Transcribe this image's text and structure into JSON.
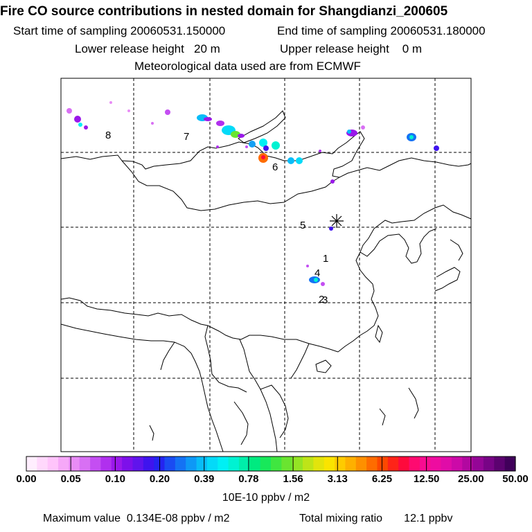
{
  "header": {
    "title": "Fire CO source contributions in nested domain for Shangdianzi_200605",
    "start_label": "Start time of sampling",
    "start_value": "20060531.150000",
    "end_label": "End time of sampling",
    "end_value": "20060531.180000",
    "lower_label": "Lower release height",
    "lower_value": "20 m",
    "upper_label": "Upper release height",
    "upper_value": "0 m",
    "met_text": "Meteorological data used are from ECMWF"
  },
  "map": {
    "receptor_symbol": "asterisk",
    "point_labels": [
      "1",
      "2",
      "3",
      "4",
      "5",
      "6",
      "7",
      "8"
    ]
  },
  "colorbar": {
    "labels": [
      "0.00",
      "0.05",
      "0.10",
      "0.20",
      "0.39",
      "0.78",
      "1.56",
      "3.13",
      "6.25",
      "12.50",
      "25.00",
      "50.00"
    ],
    "units": "10E-10 ppbv / m2",
    "colors": [
      "#ffeefe",
      "#ffd8fc",
      "#ffc4fb",
      "#f6a8f8",
      "#e88cf6",
      "#d870f4",
      "#c44ef2",
      "#b030ee",
      "#9a18ea",
      "#7d10ea",
      "#6014ec",
      "#3f14ee",
      "#2424f0",
      "#1a4cf2",
      "#1472f4",
      "#0e98f6",
      "#08bcf8",
      "#04daf8",
      "#00f0f4",
      "#00f2d2",
      "#00eeaa",
      "#00ea80",
      "#18e85a",
      "#40e640",
      "#6ae430",
      "#94e424",
      "#bee418",
      "#e2e40c",
      "#fae400",
      "#fecb00",
      "#feb000",
      "#fe9000",
      "#fe6c00",
      "#fe4800",
      "#fe2418",
      "#fe0a3c",
      "#fe0a70",
      "#f80c90",
      "#ee0ca0",
      "#e00ca8",
      "#cc0aa8",
      "#b208a0",
      "#940696",
      "#780486",
      "#5c0270",
      "#40005a"
    ]
  },
  "footer": {
    "max_label": "Maximum value",
    "max_value": "0.134E-08 ppbv / m2",
    "total_label": "Total mixing ratio",
    "total_value": "12.1 ppbv"
  }
}
